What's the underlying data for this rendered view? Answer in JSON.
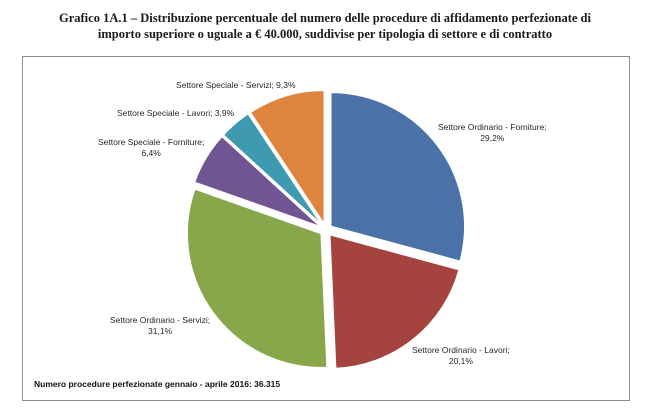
{
  "title": {
    "line1": "Grafico 1A.1 – Distribuzione percentuale del numero delle procedure di affidamento perfezionate di",
    "line2": "importo superiore o uguale a € 40.000, suddivise per tipologia di settore e di contratto"
  },
  "footnote": "Numero procedure perfezionate gennaio - aprile 2016: 36.315",
  "chart_data": {
    "type": "pie",
    "slices": [
      {
        "name": "Settore Ordinario - Forniture",
        "value": 29.2,
        "label": "29,2%",
        "color": "#4A72A8"
      },
      {
        "name": "Settore Ordinario - Lavori",
        "value": 20.1,
        "label": "20,1%",
        "color": "#A5433F"
      },
      {
        "name": "Settore Ordinario - Servizi",
        "value": 31.1,
        "label": "31,1%",
        "color": "#88A64A"
      },
      {
        "name": "Settore Speciale - Forniture",
        "value": 6.4,
        "label": "6,4%",
        "color": "#705592"
      },
      {
        "name": "Settore Speciale - Lavori",
        "value": 3.9,
        "label": "3,9%",
        "color": "#3E9AB0"
      },
      {
        "name": "Settore Speciale - Servizi",
        "value": 9.3,
        "label": "9,3%",
        "color": "#DF843C"
      }
    ],
    "legend": "none"
  }
}
